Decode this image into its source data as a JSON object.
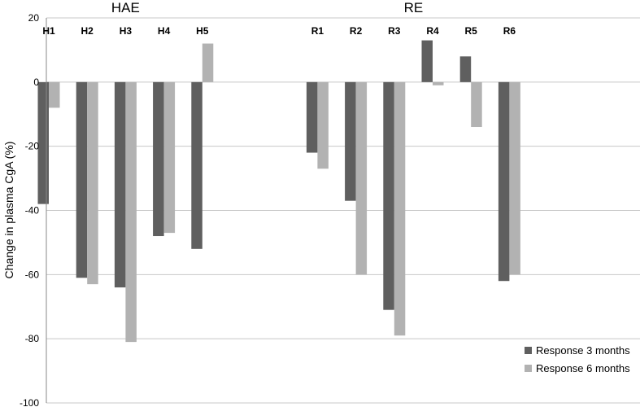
{
  "chart_data": {
    "type": "bar",
    "ylabel": "Change in plasma CgA (%)",
    "ylim": [
      -100,
      20
    ],
    "yticks": [
      20,
      0,
      -20,
      -40,
      -60,
      -80,
      -100
    ],
    "grid": true,
    "legend_position": "bottom-right",
    "groups": [
      {
        "label": "HAE",
        "categories": [
          "H1",
          "H2",
          "H3",
          "H4",
          "H5"
        ]
      },
      {
        "label": "RE",
        "categories": [
          "R1",
          "R2",
          "R3",
          "R4",
          "R5",
          "R6"
        ]
      }
    ],
    "categories": [
      "H1",
      "H2",
      "H3",
      "H4",
      "H5",
      "",
      "",
      "R1",
      "R2",
      "R3",
      "R4",
      "R5",
      "R6"
    ],
    "series": [
      {
        "name": "Response 3 months",
        "color": "#5f5f5f",
        "values": [
          -38,
          -61,
          -64,
          -48,
          -52,
          null,
          null,
          -22,
          -37,
          -71,
          13,
          8,
          -62
        ]
      },
      {
        "name": "Response 6 months",
        "color": "#b2b2b2",
        "values": [
          -8,
          -63,
          -81,
          -47,
          12,
          null,
          null,
          -27,
          -60,
          -79,
          -1,
          -14,
          -60
        ]
      }
    ]
  }
}
